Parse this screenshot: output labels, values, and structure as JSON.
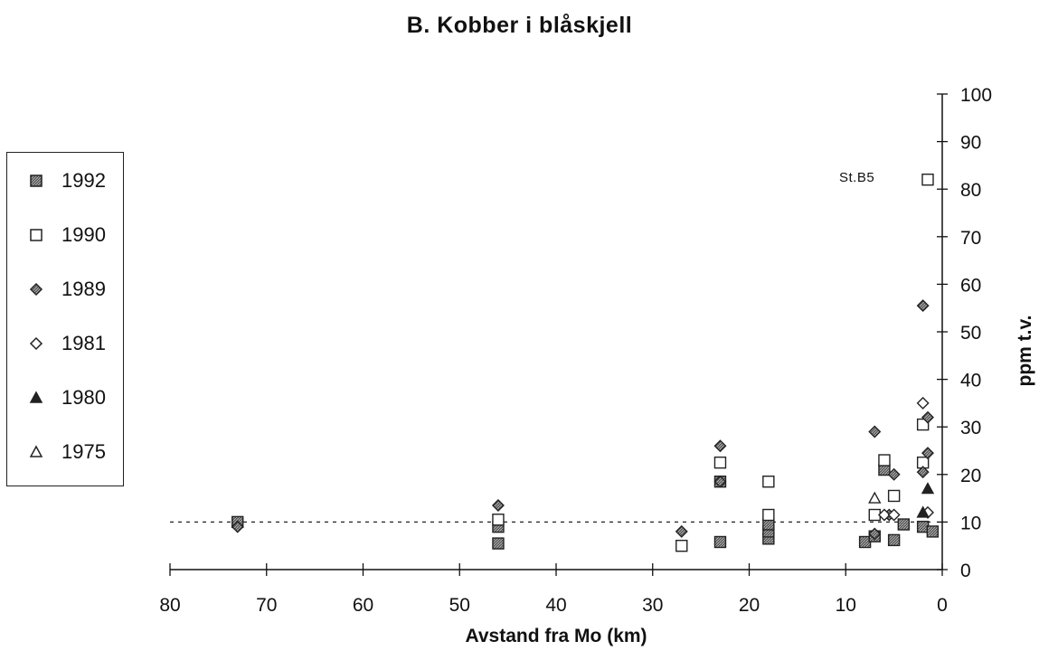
{
  "chart_data": {
    "type": "scatter",
    "title": "B. Kobber i blåskjell",
    "xlabel": "Avstand fra Mo (km)",
    "ylabel": "ppm t.v.",
    "xlim": [
      80,
      0
    ],
    "ylim": [
      0,
      100
    ],
    "x_reversed": true,
    "x_ticks": [
      80,
      70,
      60,
      50,
      40,
      30,
      20,
      10,
      0
    ],
    "y_ticks": [
      0,
      10,
      20,
      30,
      40,
      50,
      60,
      70,
      80,
      90,
      100
    ],
    "y_axis_position": "right",
    "grid": false,
    "legend_position": "left",
    "reference_line": {
      "y": 10,
      "style": "dashed"
    },
    "annotation": {
      "text": "St.B5",
      "x": 1.5,
      "y": 82
    },
    "series": [
      {
        "name": "1992",
        "marker": "square-hatched",
        "points": [
          [
            73,
            10
          ],
          [
            46,
            5.5
          ],
          [
            46,
            9
          ],
          [
            23,
            5.8
          ],
          [
            23,
            18.5
          ],
          [
            18,
            6.5
          ],
          [
            18,
            8
          ],
          [
            18,
            9.5
          ],
          [
            8,
            5.8
          ],
          [
            7,
            7
          ],
          [
            6,
            21
          ],
          [
            5,
            6.2
          ],
          [
            4,
            9.5
          ],
          [
            2,
            9
          ],
          [
            1,
            8
          ]
        ]
      },
      {
        "name": "1990",
        "marker": "square-open",
        "points": [
          [
            46,
            10.5
          ],
          [
            27,
            5
          ],
          [
            23,
            22.5
          ],
          [
            18,
            18.5
          ],
          [
            18,
            11.5
          ],
          [
            7,
            11.5
          ],
          [
            6,
            23
          ],
          [
            5,
            15.5
          ],
          [
            2,
            22.5
          ],
          [
            2,
            30.5
          ],
          [
            1.5,
            82
          ]
        ]
      },
      {
        "name": "1989",
        "marker": "diamond-hatched",
        "points": [
          [
            73,
            9
          ],
          [
            46,
            13.5
          ],
          [
            27,
            8
          ],
          [
            23,
            26
          ],
          [
            23,
            18.5
          ],
          [
            7,
            29
          ],
          [
            7,
            7.5
          ],
          [
            5.5,
            11.5
          ],
          [
            5,
            20
          ],
          [
            2,
            55.5
          ],
          [
            2,
            20.5
          ],
          [
            1.5,
            24.5
          ],
          [
            1.5,
            32
          ]
        ]
      },
      {
        "name": "1981",
        "marker": "diamond-open",
        "points": [
          [
            6,
            11.5
          ],
          [
            5,
            11.5
          ],
          [
            2,
            35
          ],
          [
            1.5,
            12
          ]
        ]
      },
      {
        "name": "1980",
        "marker": "triangle-filled",
        "points": [
          [
            2,
            12
          ],
          [
            1.5,
            17
          ]
        ]
      },
      {
        "name": "1975",
        "marker": "triangle-open",
        "points": [
          [
            7,
            15
          ]
        ]
      }
    ]
  }
}
